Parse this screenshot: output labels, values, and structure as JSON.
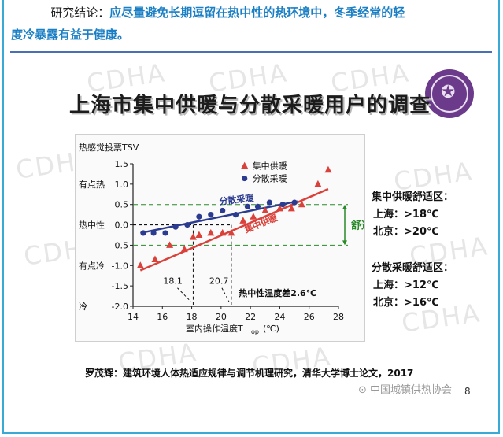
{
  "header": {
    "lead": "研究结论：",
    "line1": "应尽量避免长期逗留在热中性的热环境中，冬季经常的轻",
    "line2": "度冷暴露有益于健康。"
  },
  "slide": {
    "title": "上海市集中供暖与分散采暖用户的调查",
    "watermark": "CDHA",
    "source": "罗茂辉：建筑环境人体热适应规律与调节机理研究，清华大学博士论文，2017",
    "wechat": "中国城镇供热协会",
    "page_number": "8"
  },
  "comfort": {
    "central_title": "集中供暖舒适区：",
    "central_sh": "上海：>18℃",
    "central_bj": "北京：>20℃",
    "dispersed_title": "分散采暖舒适区：",
    "dispersed_sh": "上海：>12℃",
    "dispersed_bj": "北京：>16℃"
  },
  "chart_data": {
    "type": "scatter",
    "ylabel": "热感觉投票TSV",
    "xlabel": "室内操作温度T",
    "xlabel_sub": "op",
    "xlabel_unit": "(℃)",
    "xlim": [
      14,
      28
    ],
    "ylim": [
      -2.0,
      1.5
    ],
    "xticks": [
      "14",
      "16",
      "18",
      "20",
      "22",
      "24",
      "26",
      "28"
    ],
    "yticks": [
      "-2.0",
      "-1.5",
      "-1.0",
      "-0.5",
      "0.0",
      "0.5",
      "1.0",
      "1.5"
    ],
    "ycat_labels": [
      "有点热",
      "热中性",
      "有点冷",
      "冷"
    ],
    "legend": [
      "集中供暖",
      "分散采暖"
    ],
    "line_labels": [
      "分散采暖",
      "集中供暖"
    ],
    "comfort_label": "舒适区",
    "neutral_labels": [
      "18.1",
      "20.7"
    ],
    "neutral_diff": "热中性温度差2.6℃",
    "colors": {
      "central": "#d9413a",
      "dispersed": "#2b3b8f",
      "comfort": "#2a8a2a"
    },
    "series": [
      {
        "name": "集中供暖",
        "x": [
          14.5,
          15.5,
          16.5,
          17.5,
          18.1,
          18.5,
          19.3,
          20.1,
          20.7,
          21.5,
          22.2,
          23.0,
          24.0,
          24.8,
          25.5,
          26.6,
          27.3
        ],
        "y": [
          -1.0,
          -0.85,
          -0.5,
          -0.6,
          -0.3,
          -0.25,
          -0.2,
          -0.2,
          -0.2,
          0.1,
          0.2,
          0.35,
          0.4,
          0.4,
          0.5,
          1.0,
          1.35
        ]
      },
      {
        "name": "分散采暖",
        "x": [
          14.7,
          15.4,
          16.2,
          16.9,
          17.7,
          18.5,
          19.3,
          20.1,
          21.0,
          21.8,
          22.5,
          23.3,
          24.2,
          25.0
        ],
        "y": [
          -0.2,
          -0.2,
          -0.2,
          -0.05,
          0.0,
          0.2,
          0.25,
          0.35,
          0.25,
          0.45,
          0.45,
          0.55,
          0.5,
          0.55
        ]
      }
    ],
    "fit_lines": [
      {
        "name": "集中供暖",
        "x": [
          14.5,
          27.3
        ],
        "y": [
          -1.12,
          0.88
        ]
      },
      {
        "name": "分散采暖",
        "x": [
          14.5,
          25.2
        ],
        "y": [
          -0.2,
          0.58
        ]
      }
    ],
    "comfort_band": [
      -0.5,
      0.5
    ]
  }
}
